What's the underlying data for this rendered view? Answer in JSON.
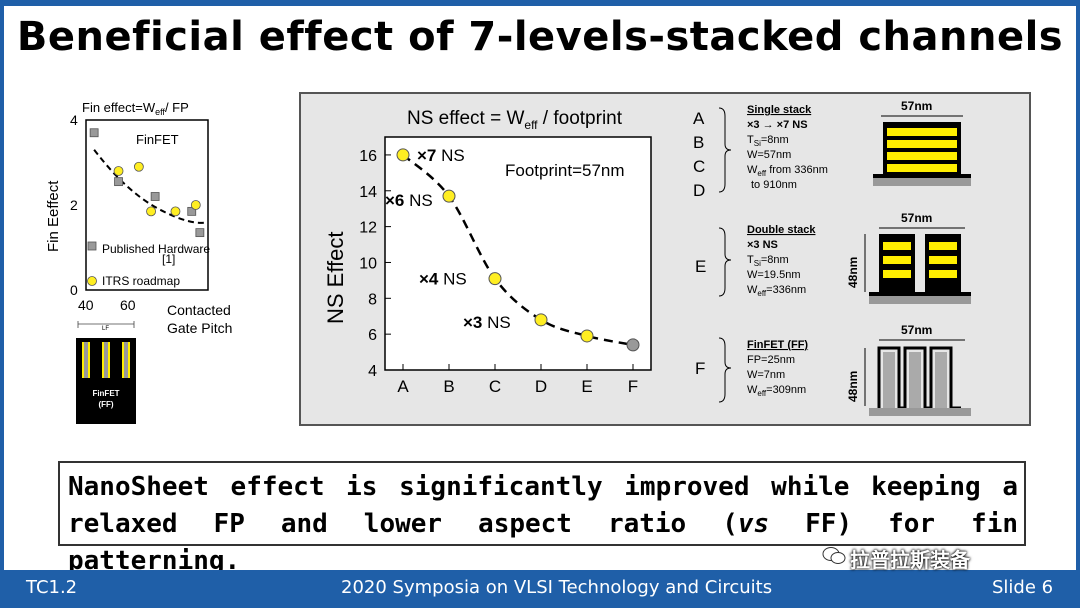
{
  "title": "Beneficial effect of 7-levels-stacked channels",
  "conclusion": {
    "line1": "NanoSheet effect is significantly improved while keeping a",
    "line2_pre": "relaxed FP and lower aspect ratio (",
    "line2_italic": "vs",
    "line2_post": " FF) for fin patterning."
  },
  "footer": {
    "left": "TC1.2",
    "center": "2020 Symposia on VLSI Technology and Circuits",
    "right": "Slide 6"
  },
  "watermark": "拉普拉斯装备",
  "colors": {
    "frame": "#1f5fa8",
    "marker_yellow": "#ffee22",
    "marker_gray": "#999999",
    "stack_yellow": "#ffee00"
  },
  "chart_data": [
    {
      "type": "scatter",
      "title": "NS effect = W",
      "title_sub": "eff",
      "title_post": " / footprint",
      "ylabel": "NS Effect",
      "annotation": "Footprint=57nm",
      "categories": [
        "A",
        "B",
        "C",
        "D",
        "E",
        "F"
      ],
      "ylim": [
        4,
        17
      ],
      "yticks": [
        4,
        6,
        8,
        10,
        12,
        14,
        16
      ],
      "trend": "dashed",
      "points": [
        {
          "x": "A",
          "y": 16.0,
          "label": "×7 NS",
          "color": "yellow"
        },
        {
          "x": "B",
          "y": 13.7,
          "label": "×6 NS",
          "color": "yellow"
        },
        {
          "x": "C",
          "y": 9.1,
          "label": "×4 NS",
          "color": "yellow"
        },
        {
          "x": "D",
          "y": 6.8,
          "label": "×3 NS",
          "color": "yellow"
        },
        {
          "x": "E",
          "y": 5.9,
          "label": "",
          "color": "yellow"
        },
        {
          "x": "F",
          "y": 5.4,
          "label": "",
          "color": "gray"
        }
      ]
    },
    {
      "type": "scatter",
      "title": "Fin effect=W",
      "title_sub": "eff",
      "title_post": "/ FP",
      "ylabel": "Fin Eeffect",
      "xlabel_line1": "Contacted",
      "xlabel_line2": "Gate Pitch",
      "inner_label": "FinFET",
      "xlim": [
        40,
        70
      ],
      "ylim": [
        0,
        4
      ],
      "xticks": [
        40,
        60
      ],
      "yticks": [
        0,
        2,
        4
      ],
      "trend": "dashed",
      "series": [
        {
          "name": "Published Hardware",
          "ref": "[1]",
          "marker": "gray-square",
          "points": [
            [
              42,
              3.7
            ],
            [
              48,
              2.55
            ],
            [
              57,
              2.2
            ],
            [
              66,
              1.85
            ],
            [
              68,
              1.35
            ]
          ]
        },
        {
          "name": "ITRS  roadmap",
          "marker": "yellow-circle",
          "points": [
            [
              48,
              2.8
            ],
            [
              53,
              2.9
            ],
            [
              56,
              1.85
            ],
            [
              62,
              1.85
            ],
            [
              67,
              2.0
            ]
          ]
        }
      ]
    }
  ],
  "legend_letters": [
    "A",
    "B",
    "C",
    "D",
    "E",
    "F"
  ],
  "structures": {
    "single": {
      "heading": "Single stack",
      "line1": "×3 → ×7 NS",
      "line2_pre": "T",
      "line2_sub": "Si",
      "line2_post": "=8nm",
      "line3": "W=57nm",
      "line4_pre": "W",
      "line4_sub": "eff",
      "line4_post": " from 336nm",
      "line5": "to 910nm",
      "dim": "57nm"
    },
    "double": {
      "heading": "Double stack",
      "line1": "×3 NS",
      "line2_pre": "T",
      "line2_sub": "Si",
      "line2_post": "=8nm",
      "line3": "W=19.5nm",
      "line4_pre": "W",
      "line4_sub": "eff",
      "line4_post": "=336nm",
      "dim": "57nm",
      "height": "48nm"
    },
    "finfet": {
      "heading": "FinFET (FF)",
      "line1": "FP=25nm",
      "line2": "W=7nm",
      "line3_pre": "W",
      "line3_sub": "eff",
      "line3_post": "=309nm",
      "dim": "57nm",
      "height": "48nm"
    }
  },
  "finfet_thumb": {
    "top_label": "LF",
    "label_line1": "FinFET",
    "label_line2": "(FF)"
  }
}
